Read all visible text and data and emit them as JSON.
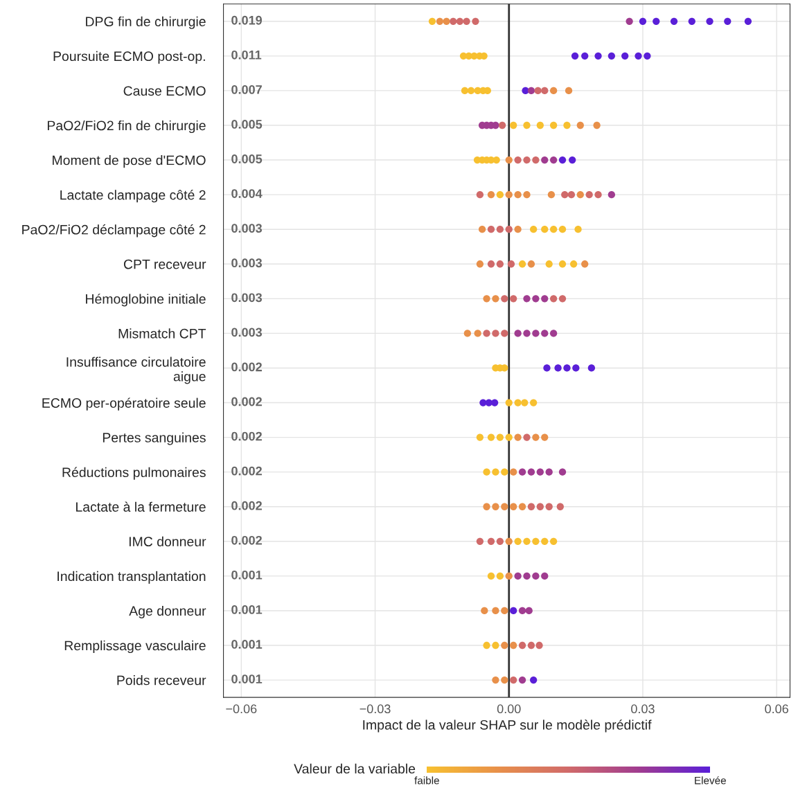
{
  "chart_data": {
    "type": "scatter",
    "orientation": "horizontal",
    "xlabel": "Impact de la valeur SHAP sur le modèle prédictif",
    "clabel": "Valeur de la variable",
    "categories": [
      "DPG fin de chirurgie",
      "Poursuite ECMO post-op.",
      "Cause ECMO",
      "PaO2/FiO2 fin de chirurgie",
      "Moment de pose d'ECMO",
      "Lactate clampage côté 2",
      "PaO2/FiO2 déclampage côté 2",
      "CPT receveur",
      "Hémoglobine initiale",
      "Mismatch CPT",
      "Insuffisance circulatoire\naigue",
      "ECMO per-opératoire seule",
      "Pertes sanguines",
      "Réductions pulmonaires",
      "Lactate à la fermeture",
      "IMC donneur",
      "Indication transplantation",
      "Age donneur",
      "Remplissage vasculaire",
      "Poids receveur"
    ],
    "value_labels": [
      "0.019",
      "0.011",
      "0.007",
      "0.005",
      "0.005",
      "0.004",
      "0.003",
      "0.003",
      "0.003",
      "0.003",
      "0.002",
      "0.002",
      "0.002",
      "0.002",
      "0.002",
      "0.002",
      "0.001",
      "0.001",
      "0.001",
      "0.001"
    ],
    "series": [
      {
        "x": [
          "DPG fin de chirurgie",
          "DPG fin de chirurgie",
          "DPG fin de chirurgie",
          "DPG fin de chirurgie",
          "DPG fin de chirurgie",
          "DPG fin de chirurgie",
          "DPG fin de chirurgie",
          "DPG fin de chirurgie",
          "DPG fin de chirurgie",
          "DPG fin de chirurgie",
          "DPG fin de chirurgie",
          "DPG fin de chirurgie",
          "DPG fin de chirurgie",
          "DPG fin de chirurgie",
          "DPG fin de chirurgie"
        ],
        "values": [
          -0.0172,
          -0.0155,
          -0.014,
          -0.0125,
          -0.011,
          -0.0095,
          -0.0075,
          0.027,
          0.03,
          0.033,
          0.037,
          0.041,
          0.045,
          0.049,
          0.0536
        ],
        "colors": [
          "#f7c030",
          "#e8904a",
          "#e8904a",
          "#d06a6a",
          "#d06a6a",
          "#d06a6a",
          "#d06a6a",
          "#a03c90",
          "#5a1fd8",
          "#5a1fd8",
          "#5a1fd8",
          "#5a1fd8",
          "#5a1fd8",
          "#5a1fd8",
          "#5a1fd8"
        ]
      },
      {
        "x": [
          "Poursuite ECMO post-op.",
          "Poursuite ECMO post-op.",
          "Poursuite ECMO post-op.",
          "Poursuite ECMO post-op.",
          "Poursuite ECMO post-op.",
          "Poursuite ECMO post-op.",
          "Poursuite ECMO post-op.",
          "Poursuite ECMO post-op.",
          "Poursuite ECMO post-op.",
          "Poursuite ECMO post-op.",
          "Poursuite ECMO post-op.",
          "Poursuite ECMO post-op."
        ],
        "values": [
          -0.0102,
          -0.009,
          -0.0078,
          -0.0066,
          -0.0056,
          0.0148,
          0.017,
          0.02,
          0.023,
          0.026,
          0.029,
          0.031
        ],
        "colors": [
          "#f7c030",
          "#f7c030",
          "#f7c030",
          "#f7c030",
          "#f7c030",
          "#5a1fd8",
          "#5a1fd8",
          "#5a1fd8",
          "#5a1fd8",
          "#5a1fd8",
          "#5a1fd8",
          "#5a1fd8"
        ]
      },
      {
        "x": [
          "Cause ECMO",
          "Cause ECMO",
          "Cause ECMO",
          "Cause ECMO",
          "Cause ECMO",
          "Cause ECMO",
          "Cause ECMO",
          "Cause ECMO",
          "Cause ECMO",
          "Cause ECMO",
          "Cause ECMO"
        ],
        "values": [
          -0.0099,
          -0.0085,
          -0.007,
          -0.0058,
          -0.0048,
          0.0037,
          0.005,
          0.0065,
          0.008,
          0.01,
          0.0134
        ],
        "colors": [
          "#f7c030",
          "#f7c030",
          "#f7c030",
          "#f7c030",
          "#f7c030",
          "#5a1fd8",
          "#a03c90",
          "#d06a6a",
          "#d06a6a",
          "#e8904a",
          "#e8904a"
        ]
      },
      {
        "x": [
          "PaO2/FiO2 fin de chirurgie",
          "PaO2/FiO2 fin de chirurgie",
          "PaO2/FiO2 fin de chirurgie",
          "PaO2/FiO2 fin de chirurgie",
          "PaO2/FiO2 fin de chirurgie",
          "PaO2/FiO2 fin de chirurgie",
          "PaO2/FiO2 fin de chirurgie",
          "PaO2/FiO2 fin de chirurgie",
          "PaO2/FiO2 fin de chirurgie",
          "PaO2/FiO2 fin de chirurgie",
          "PaO2/FiO2 fin de chirurgie",
          "PaO2/FiO2 fin de chirurgie"
        ],
        "values": [
          -0.006,
          -0.005,
          -0.004,
          -0.003,
          -0.0015,
          0.001,
          0.004,
          0.007,
          0.01,
          0.013,
          0.016,
          0.0197
        ],
        "colors": [
          "#a03c90",
          "#a03c90",
          "#a03c90",
          "#a03c90",
          "#d06a6a",
          "#f7c030",
          "#f7c030",
          "#f7c030",
          "#f7c030",
          "#f7c030",
          "#e8904a",
          "#e8904a"
        ]
      },
      {
        "x": [
          "Moment de pose d'ECMO",
          "Moment de pose d'ECMO",
          "Moment de pose d'ECMO",
          "Moment de pose d'ECMO",
          "Moment de pose d'ECMO",
          "Moment de pose d'ECMO",
          "Moment de pose d'ECMO",
          "Moment de pose d'ECMO",
          "Moment de pose d'ECMO",
          "Moment de pose d'ECMO",
          "Moment de pose d'ECMO",
          "Moment de pose d'ECMO",
          "Moment de pose d'ECMO"
        ],
        "values": [
          -0.0071,
          -0.006,
          -0.005,
          -0.004,
          -0.0028,
          0.0,
          0.002,
          0.004,
          0.006,
          0.008,
          0.01,
          0.012,
          0.0142
        ],
        "colors": [
          "#f7c030",
          "#f7c030",
          "#f7c030",
          "#f7c030",
          "#f7c030",
          "#e8904a",
          "#d06a6a",
          "#d06a6a",
          "#d06a6a",
          "#a03c90",
          "#a03c90",
          "#5a1fd8",
          "#5a1fd8"
        ]
      },
      {
        "x": [
          "Lactate clampage côté 2",
          "Lactate clampage côté 2",
          "Lactate clampage côté 2",
          "Lactate clampage côté 2",
          "Lactate clampage côté 2",
          "Lactate clampage côté 2",
          "Lactate clampage côté 2",
          "Lactate clampage côté 2",
          "Lactate clampage côté 2",
          "Lactate clampage côté 2",
          "Lactate clampage côté 2",
          "Lactate clampage côté 2",
          "Lactate clampage côté 2"
        ],
        "values": [
          -0.0065,
          -0.004,
          -0.002,
          0.0,
          0.002,
          0.004,
          0.0095,
          0.0125,
          0.014,
          0.016,
          0.018,
          0.02,
          0.023
        ],
        "colors": [
          "#d06a6a",
          "#e8904a",
          "#f7c030",
          "#e8904a",
          "#e8904a",
          "#e8904a",
          "#e8904a",
          "#d06a6a",
          "#d06a6a",
          "#e8904a",
          "#d06a6a",
          "#d06a6a",
          "#a03c90"
        ]
      },
      {
        "x": [
          "PaO2/FiO2 déclampage côté 2",
          "PaO2/FiO2 déclampage côté 2",
          "PaO2/FiO2 déclampage côté 2",
          "PaO2/FiO2 déclampage côté 2",
          "PaO2/FiO2 déclampage côté 2",
          "PaO2/FiO2 déclampage côté 2",
          "PaO2/FiO2 déclampage côté 2",
          "PaO2/FiO2 déclampage côté 2",
          "PaO2/FiO2 déclampage côté 2",
          "PaO2/FiO2 déclampage côté 2"
        ],
        "values": [
          -0.006,
          -0.004,
          -0.002,
          0.0,
          0.002,
          0.0055,
          0.008,
          0.01,
          0.012,
          0.0155
        ],
        "colors": [
          "#e8904a",
          "#d06a6a",
          "#d06a6a",
          "#d06a6a",
          "#e8904a",
          "#f7c030",
          "#f7c030",
          "#f7c030",
          "#f7c030",
          "#f7c030"
        ]
      },
      {
        "x": [
          "CPT receveur",
          "CPT receveur",
          "CPT receveur",
          "CPT receveur",
          "CPT receveur",
          "CPT receveur",
          "CPT receveur",
          "CPT receveur",
          "CPT receveur",
          "CPT receveur"
        ],
        "values": [
          -0.0065,
          -0.004,
          -0.002,
          0.0005,
          0.003,
          0.005,
          0.009,
          0.012,
          0.0145,
          0.017
        ],
        "colors": [
          "#e8904a",
          "#d06a6a",
          "#d06a6a",
          "#d06a6a",
          "#f7c030",
          "#e8904a",
          "#f7c030",
          "#f7c030",
          "#f7c030",
          "#e8904a"
        ]
      },
      {
        "x": [
          "Hémoglobine initiale",
          "Hémoglobine initiale",
          "Hémoglobine initiale",
          "Hémoglobine initiale",
          "Hémoglobine initiale",
          "Hémoglobine initiale",
          "Hémoglobine initiale",
          "Hémoglobine initiale",
          "Hémoglobine initiale"
        ],
        "values": [
          -0.005,
          -0.003,
          -0.001,
          0.001,
          0.004,
          0.006,
          0.008,
          0.01,
          0.012
        ],
        "colors": [
          "#e8904a",
          "#e8904a",
          "#d06a6a",
          "#d06a6a",
          "#a03c90",
          "#a03c90",
          "#a03c90",
          "#d06a6a",
          "#d06a6a"
        ]
      },
      {
        "x": [
          "Mismatch CPT",
          "Mismatch CPT",
          "Mismatch CPT",
          "Mismatch CPT",
          "Mismatch CPT",
          "Mismatch CPT",
          "Mismatch CPT",
          "Mismatch CPT",
          "Mismatch CPT",
          "Mismatch CPT"
        ],
        "values": [
          -0.0093,
          -0.007,
          -0.005,
          -0.003,
          -0.001,
          0.002,
          0.004,
          0.006,
          0.008,
          0.01
        ],
        "colors": [
          "#e8904a",
          "#e8904a",
          "#d06a6a",
          "#d06a6a",
          "#d06a6a",
          "#a03c90",
          "#a03c90",
          "#a03c90",
          "#a03c90",
          "#a03c90"
        ]
      },
      {
        "x": [
          "Insuffisance circulatoire\naigue",
          "Insuffisance circulatoire\naigue",
          "Insuffisance circulatoire\naigue",
          "Insuffisance circulatoire\naigue",
          "Insuffisance circulatoire\naigue",
          "Insuffisance circulatoire\naigue",
          "Insuffisance circulatoire\naigue",
          "Insuffisance circulatoire\naigue"
        ],
        "values": [
          -0.003,
          -0.002,
          -0.001,
          0.0085,
          0.011,
          0.013,
          0.015,
          0.0185
        ],
        "colors": [
          "#f7c030",
          "#f7c030",
          "#f7c030",
          "#5a1fd8",
          "#5a1fd8",
          "#5a1fd8",
          "#5a1fd8",
          "#5a1fd8"
        ]
      },
      {
        "x": [
          "ECMO per-opératoire seule",
          "ECMO per-opératoire seule",
          "ECMO per-opératoire seule",
          "ECMO per-opératoire seule",
          "ECMO per-opératoire seule",
          "ECMO per-opératoire seule",
          "ECMO per-opératoire seule"
        ],
        "values": [
          -0.0058,
          -0.0045,
          -0.0032,
          0.0,
          0.002,
          0.0035,
          0.0055
        ],
        "colors": [
          "#5a1fd8",
          "#5a1fd8",
          "#5a1fd8",
          "#f7c030",
          "#f7c030",
          "#f7c030",
          "#f7c030"
        ]
      },
      {
        "x": [
          "Pertes sanguines",
          "Pertes sanguines",
          "Pertes sanguines",
          "Pertes sanguines",
          "Pertes sanguines",
          "Pertes sanguines",
          "Pertes sanguines",
          "Pertes sanguines"
        ],
        "values": [
          -0.0065,
          -0.004,
          -0.002,
          0.0,
          0.002,
          0.004,
          0.006,
          0.008
        ],
        "colors": [
          "#f7c030",
          "#f7c030",
          "#f7c030",
          "#f7c030",
          "#e8904a",
          "#d06a6a",
          "#e8904a",
          "#e8904a"
        ]
      },
      {
        "x": [
          "Réductions pulmonaires",
          "Réductions pulmonaires",
          "Réductions pulmonaires",
          "Réductions pulmonaires",
          "Réductions pulmonaires",
          "Réductions pulmonaires",
          "Réductions pulmonaires",
          "Réductions pulmonaires",
          "Réductions pulmonaires"
        ],
        "values": [
          -0.005,
          -0.003,
          -0.001,
          0.001,
          0.003,
          0.005,
          0.007,
          0.009,
          0.012
        ],
        "colors": [
          "#f7c030",
          "#f7c030",
          "#f7c030",
          "#e8904a",
          "#a03c90",
          "#a03c90",
          "#a03c90",
          "#a03c90",
          "#a03c90"
        ]
      },
      {
        "x": [
          "Lactate à la fermeture",
          "Lactate à la fermeture",
          "Lactate à la fermeture",
          "Lactate à la fermeture",
          "Lactate à la fermeture",
          "Lactate à la fermeture",
          "Lactate à la fermeture",
          "Lactate à la fermeture",
          "Lactate à la fermeture"
        ],
        "values": [
          -0.005,
          -0.003,
          -0.001,
          0.001,
          0.003,
          0.005,
          0.007,
          0.009,
          0.0115
        ],
        "colors": [
          "#e8904a",
          "#e8904a",
          "#e8904a",
          "#e8904a",
          "#e8904a",
          "#d06a6a",
          "#d06a6a",
          "#d06a6a",
          "#d06a6a"
        ]
      },
      {
        "x": [
          "IMC donneur",
          "IMC donneur",
          "IMC donneur",
          "IMC donneur",
          "IMC donneur",
          "IMC donneur",
          "IMC donneur",
          "IMC donneur",
          "IMC donneur"
        ],
        "values": [
          -0.0065,
          -0.004,
          -0.002,
          0.0,
          0.002,
          0.004,
          0.006,
          0.008,
          0.01
        ],
        "colors": [
          "#d06a6a",
          "#d06a6a",
          "#d06a6a",
          "#e8904a",
          "#f7c030",
          "#f7c030",
          "#f7c030",
          "#f7c030",
          "#f7c030"
        ]
      },
      {
        "x": [
          "Indication transplantation",
          "Indication transplantation",
          "Indication transplantation",
          "Indication transplantation",
          "Indication transplantation",
          "Indication transplantation",
          "Indication transplantation"
        ],
        "values": [
          -0.004,
          -0.002,
          0.0,
          0.002,
          0.004,
          0.006,
          0.008
        ],
        "colors": [
          "#f7c030",
          "#f7c030",
          "#e8904a",
          "#a03c90",
          "#a03c90",
          "#a03c90",
          "#a03c90"
        ]
      },
      {
        "x": [
          "Age donneur",
          "Age donneur",
          "Age donneur",
          "Age donneur",
          "Age donneur",
          "Age donneur"
        ],
        "values": [
          -0.0055,
          -0.003,
          -0.001,
          0.001,
          0.003,
          0.0045
        ],
        "colors": [
          "#e8904a",
          "#e8904a",
          "#e8904a",
          "#5a1fd8",
          "#a03c90",
          "#a03c90"
        ]
      },
      {
        "x": [
          "Remplissage vasculaire",
          "Remplissage vasculaire",
          "Remplissage vasculaire",
          "Remplissage vasculaire",
          "Remplissage vasculaire",
          "Remplissage vasculaire",
          "Remplissage vasculaire"
        ],
        "values": [
          -0.005,
          -0.003,
          -0.001,
          0.001,
          0.003,
          0.005,
          0.0068
        ],
        "colors": [
          "#f7c030",
          "#f7c030",
          "#e8904a",
          "#e8904a",
          "#d06a6a",
          "#d06a6a",
          "#d06a6a"
        ]
      },
      {
        "x": [
          "Poids receveur",
          "Poids receveur",
          "Poids receveur",
          "Poids receveur",
          "Poids receveur"
        ],
        "values": [
          -0.003,
          -0.001,
          0.001,
          0.003,
          0.0055
        ],
        "colors": [
          "#e8904a",
          "#e8904a",
          "#d06a6a",
          "#a03c90",
          "#5a1fd8"
        ]
      }
    ],
    "xlim": [
      -0.064,
      0.063
    ],
    "xticks": [
      {
        "value": -0.06,
        "label": "−0.06"
      },
      {
        "value": -0.03,
        "label": "−0.03"
      },
      {
        "value": 0,
        "label": "0.00"
      },
      {
        "value": 0.03,
        "label": "0.03"
      },
      {
        "value": 0.06,
        "label": "0.06"
      }
    ],
    "clim": [
      0,
      1
    ],
    "cticks": [
      {
        "value": 0,
        "label": "faible"
      },
      {
        "value": 1,
        "label": "Elevée"
      }
    ],
    "ref_lines": [
      {
        "axis": "x",
        "value": 0,
        "color": "#333333"
      }
    ],
    "grid": true,
    "marker": "circle"
  }
}
